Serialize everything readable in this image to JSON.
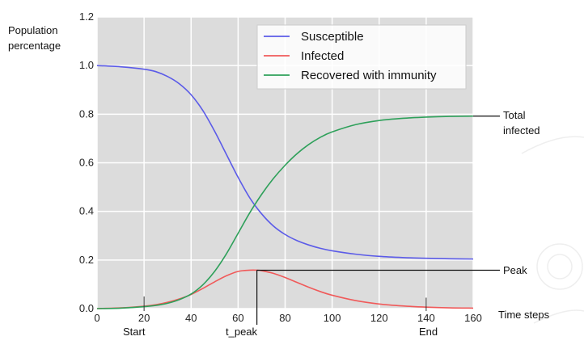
{
  "chart_data": {
    "type": "line",
    "ylabel_line1": "Population",
    "ylabel_line2": "percentage",
    "xlabel": "Time steps",
    "xlim": [
      0,
      160
    ],
    "ylim": [
      0.0,
      1.2
    ],
    "xticks": [
      "0",
      "20",
      "40",
      "60",
      "80",
      "100",
      "120",
      "140",
      "160"
    ],
    "yticks": [
      "0.0",
      "0.2",
      "0.4",
      "0.6",
      "0.8",
      "1.0",
      "1.2"
    ],
    "grid": true,
    "legend_position": "top-right",
    "series": [
      {
        "name": "Susceptible",
        "color": "#5b5be8",
        "x": [
          0,
          10,
          20,
          25,
          30,
          35,
          40,
          45,
          50,
          55,
          60,
          65,
          70,
          75,
          80,
          85,
          90,
          95,
          100,
          110,
          120,
          130,
          140,
          150,
          160
        ],
        "y": [
          1.0,
          0.995,
          0.985,
          0.975,
          0.955,
          0.925,
          0.88,
          0.815,
          0.73,
          0.635,
          0.54,
          0.455,
          0.39,
          0.34,
          0.305,
          0.28,
          0.262,
          0.248,
          0.238,
          0.224,
          0.215,
          0.21,
          0.207,
          0.205,
          0.204
        ]
      },
      {
        "name": "Infected",
        "color": "#f05a5a",
        "x": [
          0,
          10,
          20,
          25,
          30,
          35,
          40,
          45,
          50,
          55,
          60,
          65,
          68,
          70,
          75,
          80,
          85,
          90,
          95,
          100,
          110,
          120,
          130,
          140,
          150,
          160
        ],
        "y": [
          0.0,
          0.003,
          0.01,
          0.016,
          0.026,
          0.04,
          0.058,
          0.083,
          0.11,
          0.135,
          0.153,
          0.158,
          0.158,
          0.156,
          0.145,
          0.128,
          0.108,
          0.088,
          0.07,
          0.055,
          0.033,
          0.019,
          0.011,
          0.006,
          0.003,
          0.002
        ]
      },
      {
        "name": "Recovered with immunity",
        "color": "#2ea05a",
        "x": [
          0,
          10,
          20,
          25,
          30,
          35,
          40,
          45,
          50,
          55,
          60,
          65,
          70,
          75,
          80,
          85,
          90,
          95,
          100,
          110,
          120,
          130,
          140,
          150,
          160
        ],
        "y": [
          0.0,
          0.002,
          0.008,
          0.013,
          0.022,
          0.037,
          0.06,
          0.098,
          0.153,
          0.225,
          0.31,
          0.395,
          0.47,
          0.535,
          0.59,
          0.637,
          0.675,
          0.705,
          0.727,
          0.757,
          0.774,
          0.783,
          0.788,
          0.791,
          0.792
        ]
      }
    ],
    "annotations": {
      "start_x": 20,
      "start_label": "Start",
      "end_x": 140,
      "end_label": "End",
      "peak_x": 68,
      "peak_y": 0.158,
      "peak_label": "Peak",
      "t_peak_label": "t_peak",
      "total_y": 0.792,
      "total_label_line1": "Total",
      "total_label_line2": "infected"
    }
  }
}
